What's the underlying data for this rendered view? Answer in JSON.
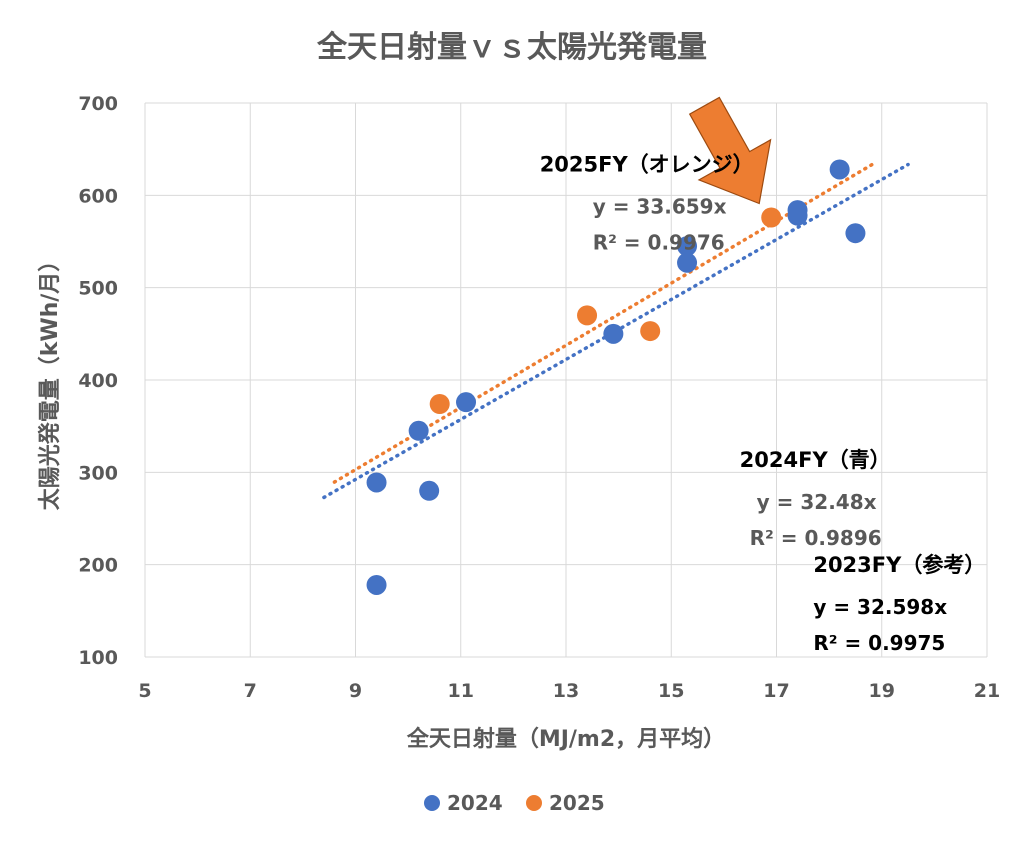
{
  "chart_data": {
    "type": "scatter",
    "title": "全天日射量ｖｓ太陽光発電量",
    "xlabel": "全天日射量（MJ/m2，月平均）",
    "ylabel": "太陽光発電量（kWh/月）",
    "xlim": [
      5,
      21
    ],
    "ylim": [
      100,
      700
    ],
    "xticks": [
      "5",
      "7",
      "9",
      "11",
      "13",
      "15",
      "17",
      "19",
      "21"
    ],
    "yticks": [
      "100",
      "200",
      "300",
      "400",
      "500",
      "600",
      "700"
    ],
    "grid": true,
    "legend": "bottom",
    "series": [
      {
        "name": "2024",
        "color": "#4472C4",
        "points": [
          {
            "x": 9.4,
            "y": 178
          },
          {
            "x": 9.4,
            "y": 289
          },
          {
            "x": 10.4,
            "y": 280
          },
          {
            "x": 10.2,
            "y": 345
          },
          {
            "x": 11.1,
            "y": 376
          },
          {
            "x": 13.9,
            "y": 450
          },
          {
            "x": 15.3,
            "y": 527
          },
          {
            "x": 15.3,
            "y": 545
          },
          {
            "x": 17.4,
            "y": 578
          },
          {
            "x": 17.4,
            "y": 584
          },
          {
            "x": 18.2,
            "y": 628
          },
          {
            "x": 18.5,
            "y": 559
          }
        ],
        "trendline": {
          "slope": 32.48,
          "x_range": [
            8.4,
            19.5
          ]
        }
      },
      {
        "name": "2025",
        "color": "#ED7D31",
        "points": [
          {
            "x": 10.6,
            "y": 374
          },
          {
            "x": 13.4,
            "y": 470
          },
          {
            "x": 14.6,
            "y": 453
          },
          {
            "x": 16.9,
            "y": 576
          }
        ],
        "trendline": {
          "slope": 33.659,
          "x_range": [
            8.6,
            18.9
          ]
        }
      }
    ],
    "annotations": [
      {
        "heading": "2025FY（オレンジ）",
        "equation": "y = 33.659x",
        "r2": "R² = 0.9976",
        "x": 12.5,
        "y": 626
      },
      {
        "heading": "2024FY（青）",
        "equation": "y = 32.48x",
        "r2": "R² = 0.9896",
        "x": 16.3,
        "y": 306
      },
      {
        "heading": "2023FY（参考）",
        "equation": "y = 32.598x",
        "r2": "R² = 0.9975",
        "x": 17.7,
        "y": 192
      }
    ],
    "arrow": {
      "color": "#ED7D31",
      "points_to": {
        "x": 16.9,
        "y": 576
      }
    }
  }
}
